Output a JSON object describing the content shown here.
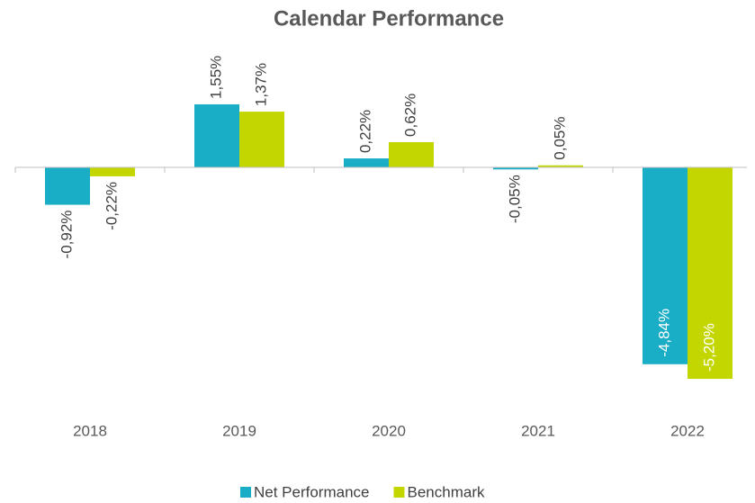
{
  "chart_data": {
    "type": "bar",
    "title": "Calendar Performance",
    "categories": [
      "2018",
      "2019",
      "2020",
      "2021",
      "2022"
    ],
    "series": [
      {
        "name": "Net Performance",
        "color": "#1aadc6",
        "values": [
          -0.92,
          1.55,
          0.22,
          -0.05,
          -4.84
        ],
        "value_labels": [
          "-0,92%",
          "1,55%",
          "0,22%",
          "-0,05%",
          "-4,84%"
        ]
      },
      {
        "name": "Benchmark",
        "color": "#c4d600",
        "values": [
          -0.22,
          1.37,
          0.62,
          0.05,
          -5.2
        ],
        "value_labels": [
          "-0,22%",
          "1,37%",
          "0,62%",
          "0,05%",
          "-5,20%"
        ]
      }
    ],
    "ylim": [
      -6,
      2
    ]
  }
}
